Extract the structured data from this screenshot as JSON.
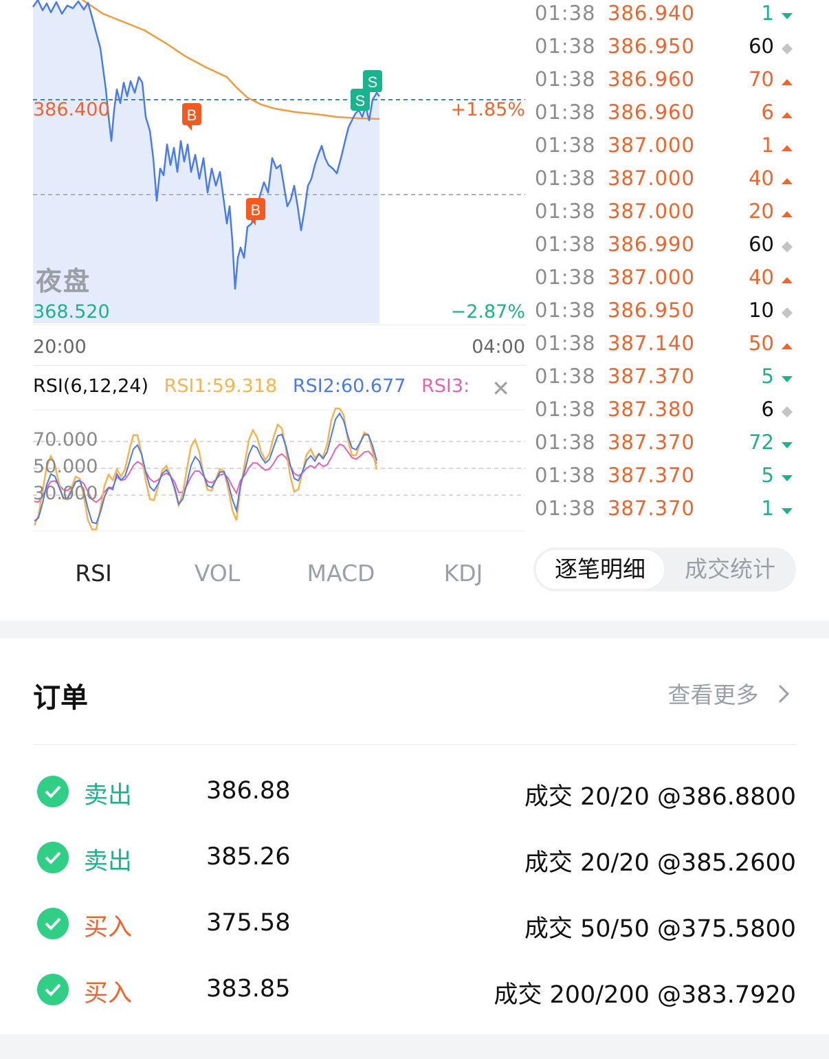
{
  "chart": {
    "high_label": "386.400",
    "high_pct": "+1.85%",
    "low_label": "368.520",
    "low_pct": "−2.87%",
    "session": "夜盘",
    "time_start": "20:00",
    "time_end": "04:00",
    "markers": [
      "B",
      "B",
      "S",
      "S"
    ],
    "colors": {
      "price_line": "#4a7af0",
      "avg_line": "#f39a3b",
      "up": "#f2632b",
      "down": "#1fb18a",
      "area": "#dbe6fb"
    }
  },
  "rsi": {
    "name": "RSI(6,12,24)",
    "rsi1": "RSI1:59.318",
    "rsi2": "RSI2:60.677",
    "rsi3": "RSI3:",
    "close_icon": "close-icon",
    "axis": [
      "70.000",
      "50.000",
      "30.000"
    ],
    "colors": {
      "rsi1": "#f7b34c",
      "rsi2": "#4a7af0",
      "rsi3": "#ea5fb0"
    }
  },
  "indicator_tabs": [
    "RSI",
    "VOL",
    "MACD",
    "KDJ"
  ],
  "ticks": [
    {
      "time": "01:38",
      "price": "386.940",
      "vol": "1",
      "dir": "down"
    },
    {
      "time": "01:38",
      "price": "386.950",
      "vol": "60",
      "dir": "flat"
    },
    {
      "time": "01:38",
      "price": "386.960",
      "vol": "70",
      "dir": "up"
    },
    {
      "time": "01:38",
      "price": "386.960",
      "vol": "6",
      "dir": "up"
    },
    {
      "time": "01:38",
      "price": "387.000",
      "vol": "1",
      "dir": "up"
    },
    {
      "time": "01:38",
      "price": "387.000",
      "vol": "40",
      "dir": "up"
    },
    {
      "time": "01:38",
      "price": "387.000",
      "vol": "20",
      "dir": "up"
    },
    {
      "time": "01:38",
      "price": "386.990",
      "vol": "60",
      "dir": "flat"
    },
    {
      "time": "01:38",
      "price": "387.000",
      "vol": "40",
      "dir": "up"
    },
    {
      "time": "01:38",
      "price": "386.950",
      "vol": "10",
      "dir": "flat"
    },
    {
      "time": "01:38",
      "price": "387.140",
      "vol": "50",
      "dir": "up"
    },
    {
      "time": "01:38",
      "price": "387.370",
      "vol": "5",
      "dir": "down"
    },
    {
      "time": "01:38",
      "price": "387.380",
      "vol": "6",
      "dir": "flat"
    },
    {
      "time": "01:38",
      "price": "387.370",
      "vol": "72",
      "dir": "down"
    },
    {
      "time": "01:38",
      "price": "387.370",
      "vol": "5",
      "dir": "down"
    },
    {
      "time": "01:38",
      "price": "387.370",
      "vol": "1",
      "dir": "down"
    }
  ],
  "tick_tabs": {
    "detail": "逐笔明细",
    "stats": "成交统计"
  },
  "orders": {
    "title": "订单",
    "more": "查看更多",
    "more_icon": "chevron-right-icon",
    "items": [
      {
        "side": "卖出",
        "type": "sell",
        "price": "386.88",
        "fill": "成交 20/20 @386.8800"
      },
      {
        "side": "卖出",
        "type": "sell",
        "price": "385.26",
        "fill": "成交 20/20 @385.2600"
      },
      {
        "side": "买入",
        "type": "buy",
        "price": "375.58",
        "fill": "成交 50/50 @375.5800"
      },
      {
        "side": "买入",
        "type": "buy",
        "price": "383.85",
        "fill": "成交 200/200 @383.7920"
      }
    ]
  }
}
